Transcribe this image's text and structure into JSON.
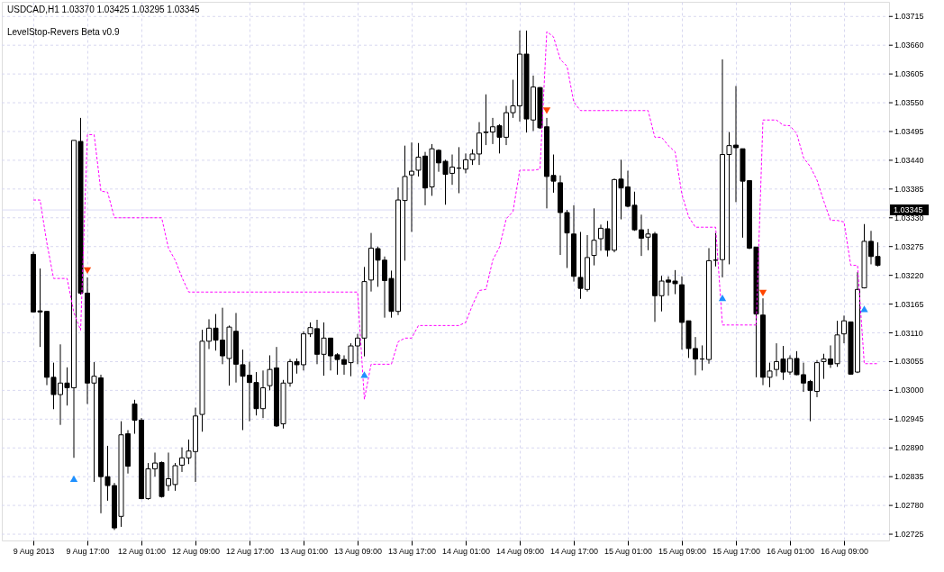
{
  "chart_data": {
    "type": "candlestick",
    "title": "USDCAD,H1 1.03370 1.03425 1.03295 1.03345",
    "subtitle": "LevelStop-Revers Beta v0.9",
    "categories": [
      "9 Aug 2013",
      null,
      null,
      null,
      null,
      null,
      null,
      null,
      "9 Aug 17:00",
      null,
      null,
      null,
      null,
      null,
      null,
      null,
      "12 Aug 01:00",
      null,
      null,
      null,
      null,
      null,
      null,
      null,
      "12 Aug 09:00",
      null,
      null,
      null,
      null,
      null,
      null,
      null,
      "12 Aug 17:00",
      null,
      null,
      null,
      null,
      null,
      null,
      null,
      "13 Aug 01:00",
      null,
      null,
      null,
      null,
      null,
      null,
      null,
      "13 Aug 09:00",
      null,
      null,
      null,
      null,
      null,
      null,
      null,
      "13 Aug 17:00",
      null,
      null,
      null,
      null,
      null,
      null,
      null,
      "14 Aug 01:00",
      null,
      null,
      null,
      null,
      null,
      null,
      null,
      "14 Aug 09:00",
      null,
      null,
      null,
      null,
      null,
      null,
      null,
      "14 Aug 17:00",
      null,
      null,
      null,
      null,
      null,
      null,
      null,
      "15 Aug 01:00",
      null,
      null,
      null,
      null,
      null,
      null,
      null,
      "15 Aug 09:00",
      null,
      null,
      null,
      null,
      null,
      null,
      null,
      "15 Aug 17:00",
      null,
      null,
      null,
      null,
      null,
      null,
      null,
      "16 Aug 01:00",
      null,
      null,
      null,
      null,
      null,
      null,
      null,
      "16 Aug 09:00",
      null,
      null,
      null,
      null,
      null
    ],
    "ohlc": [
      [
        1.0326,
        1.03265,
        1.0315,
        1.0315
      ],
      [
        1.03152,
        1.03233,
        1.03083,
        1.0315
      ],
      [
        1.03151,
        1.03151,
        1.0301,
        1.03025
      ],
      [
        1.03025,
        1.03053,
        1.02964,
        1.02992
      ],
      [
        1.02992,
        1.03088,
        1.02934,
        1.03014
      ],
      [
        1.03014,
        1.03044,
        1.02971,
        1.03005
      ],
      [
        1.03005,
        1.03478,
        1.02871,
        1.03478
      ],
      [
        1.03476,
        1.03521,
        1.03183,
        1.03186
      ],
      [
        1.03186,
        1.03216,
        1.02974,
        1.03014
      ],
      [
        1.03014,
        1.03054,
        1.02825,
        1.03027
      ],
      [
        1.03024,
        1.0303,
        1.02765,
        1.02835
      ],
      [
        1.02835,
        1.02894,
        1.02789,
        1.02818
      ],
      [
        1.02818,
        1.02823,
        1.02733,
        1.02737
      ],
      [
        1.02759,
        1.02941,
        1.02739,
        1.02915
      ],
      [
        1.02917,
        1.02924,
        1.02841,
        1.02855
      ],
      [
        1.02974,
        1.02982,
        1.02917,
        1.02943
      ],
      [
        1.02943,
        1.02947,
        1.02792,
        1.02793
      ],
      [
        1.02793,
        1.02861,
        1.02791,
        1.0285
      ],
      [
        1.0285,
        1.02881,
        1.02835,
        1.02861
      ],
      [
        1.02862,
        1.02864,
        1.02795,
        1.02797
      ],
      [
        1.02818,
        1.02881,
        1.02808,
        1.02831
      ],
      [
        1.0282,
        1.02861,
        1.02808,
        1.02856
      ],
      [
        1.02857,
        1.02891,
        1.02844,
        1.02871
      ],
      [
        1.02871,
        1.02906,
        1.02859,
        1.02884
      ],
      [
        1.02883,
        1.02967,
        1.02825,
        1.02951
      ],
      [
        1.02954,
        1.03116,
        1.02921,
        1.03094
      ],
      [
        1.03094,
        1.03136,
        1.03079,
        1.03119
      ],
      [
        1.03119,
        1.03146,
        1.03076,
        1.03096
      ],
      [
        1.03096,
        1.03158,
        1.0305,
        1.03066
      ],
      [
        1.03061,
        1.03124,
        1.03009,
        1.03121
      ],
      [
        1.03113,
        1.03148,
        1.03015,
        1.0305
      ],
      [
        1.03049,
        1.03078,
        1.02924,
        1.03027
      ],
      [
        1.03029,
        1.03055,
        1.02941,
        1.03015
      ],
      [
        1.03015,
        1.03035,
        1.02952,
        1.02965
      ],
      [
        1.02965,
        1.03038,
        1.02947,
        1.03005
      ],
      [
        1.03009,
        1.03067,
        1.03,
        1.0304
      ],
      [
        1.03043,
        1.03083,
        1.0293,
        1.02932
      ],
      [
        1.02936,
        1.0302,
        1.02927,
        1.03014
      ],
      [
        1.03014,
        1.0306,
        1.03007,
        1.03055
      ],
      [
        1.03055,
        1.03061,
        1.03032,
        1.03049
      ],
      [
        1.03049,
        1.03113,
        1.03038,
        1.03108
      ],
      [
        1.03108,
        1.0313,
        1.03102,
        1.0312
      ],
      [
        1.03118,
        1.03135,
        1.0305,
        1.03069
      ],
      [
        1.03069,
        1.0313,
        1.03028,
        1.031
      ],
      [
        1.031,
        1.031,
        1.03038,
        1.03066
      ],
      [
        1.03068,
        1.03071,
        1.0303,
        1.03059
      ],
      [
        1.03059,
        1.03067,
        1.0303,
        1.0305
      ],
      [
        1.03053,
        1.0309,
        1.03027,
        1.03085
      ],
      [
        1.03085,
        1.03108,
        1.0305,
        1.031
      ],
      [
        1.031,
        1.03236,
        1.03065,
        1.03208
      ],
      [
        1.03211,
        1.03301,
        1.03189,
        1.03272
      ],
      [
        1.03271,
        1.03275,
        1.03198,
        1.03249
      ],
      [
        1.03249,
        1.03256,
        1.03139,
        1.0321
      ],
      [
        1.03214,
        1.03229,
        1.03139,
        1.03151
      ],
      [
        1.03151,
        1.03388,
        1.03144,
        1.03364
      ],
      [
        1.03363,
        1.03468,
        1.03248,
        1.03409
      ],
      [
        1.03412,
        1.03474,
        1.03303,
        1.03419
      ],
      [
        1.03421,
        1.03473,
        1.03409,
        1.03446
      ],
      [
        1.03448,
        1.03456,
        1.03354,
        1.03387
      ],
      [
        1.03389,
        1.03471,
        1.03372,
        1.03462
      ],
      [
        1.03459,
        1.03461,
        1.03418,
        1.03435
      ],
      [
        1.03438,
        1.03441,
        1.03355,
        1.03413
      ],
      [
        1.03415,
        1.03451,
        1.03393,
        1.03427
      ],
      [
        1.03425,
        1.03465,
        1.03377,
        1.03425
      ],
      [
        1.03423,
        1.03453,
        1.03415,
        1.03441
      ],
      [
        1.03441,
        1.03461,
        1.03431,
        1.03452
      ],
      [
        1.03452,
        1.03513,
        1.03431,
        1.03492
      ],
      [
        1.03493,
        1.03566,
        1.03469,
        1.03494
      ],
      [
        1.03494,
        1.03521,
        1.03471,
        1.03504
      ],
      [
        1.03506,
        1.03509,
        1.03453,
        1.03484
      ],
      [
        1.03484,
        1.03544,
        1.03469,
        1.03531
      ],
      [
        1.03531,
        1.03594,
        1.03521,
        1.03544
      ],
      [
        1.03544,
        1.03688,
        1.03514,
        1.03643
      ],
      [
        1.03643,
        1.03688,
        1.03493,
        1.03519
      ],
      [
        1.03517,
        1.03602,
        1.03496,
        1.0358
      ],
      [
        1.03579,
        1.0358,
        1.035,
        1.03502
      ],
      [
        1.03504,
        1.03521,
        1.03348,
        1.03409
      ],
      [
        1.03411,
        1.03451,
        1.03378,
        1.034
      ],
      [
        1.03397,
        1.03411,
        1.03259,
        1.0334
      ],
      [
        1.0334,
        1.03345,
        1.03234,
        1.03301
      ],
      [
        1.03299,
        1.03354,
        1.03208,
        1.03218
      ],
      [
        1.03216,
        1.03303,
        1.03175,
        1.03195
      ],
      [
        1.03193,
        1.03297,
        1.03189,
        1.03254
      ],
      [
        1.03258,
        1.03348,
        1.03239,
        1.03287
      ],
      [
        1.0329,
        1.03317,
        1.03267,
        1.0331
      ],
      [
        1.03309,
        1.03324,
        1.03256,
        1.03268
      ],
      [
        1.03268,
        1.03405,
        1.03264,
        1.03403
      ],
      [
        1.03404,
        1.03441,
        1.03327,
        1.03387
      ],
      [
        1.03389,
        1.0342,
        1.0335,
        1.03352
      ],
      [
        1.03354,
        1.0338,
        1.03305,
        1.03307
      ],
      [
        1.03307,
        1.03336,
        1.03257,
        1.03291
      ],
      [
        1.03293,
        1.03309,
        1.03268,
        1.03299
      ],
      [
        1.03299,
        1.03303,
        1.03131,
        1.03181
      ],
      [
        1.03181,
        1.03219,
        1.03151,
        1.03209
      ],
      [
        1.03211,
        1.03218,
        1.03181,
        1.03207
      ],
      [
        1.03209,
        1.0323,
        1.03184,
        1.03204
      ],
      [
        1.03202,
        1.03218,
        1.03078,
        1.0313
      ],
      [
        1.03133,
        1.03133,
        1.03062,
        1.0308
      ],
      [
        1.0308,
        1.03102,
        1.03029,
        1.0306
      ],
      [
        1.0306,
        1.03086,
        1.03038,
        1.0306
      ],
      [
        1.03059,
        1.03272,
        1.03051,
        1.03248
      ],
      [
        1.03249,
        1.03301,
        1.03237,
        1.03249
      ],
      [
        1.0325,
        1.03633,
        1.03216,
        1.03451
      ],
      [
        1.03451,
        1.03494,
        1.03241,
        1.03468
      ],
      [
        1.03469,
        1.03582,
        1.0336,
        1.03464
      ],
      [
        1.03462,
        1.03462,
        1.03292,
        1.034
      ],
      [
        1.03401,
        1.03402,
        1.0327,
        1.03272
      ],
      [
        1.03274,
        1.03274,
        1.03025,
        1.03146
      ],
      [
        1.03144,
        1.03176,
        1.0301,
        1.03025
      ],
      [
        1.03025,
        1.03053,
        1.03006,
        1.03037
      ],
      [
        1.0304,
        1.0309,
        1.03027,
        1.03055
      ],
      [
        1.0306,
        1.03085,
        1.0302,
        1.03035
      ],
      [
        1.03035,
        1.03067,
        1.0303,
        1.03061
      ],
      [
        1.03061,
        1.03075,
        1.03029,
        1.0303
      ],
      [
        1.0303,
        1.03053,
        1.02997,
        1.03014
      ],
      [
        1.03017,
        1.0302,
        1.02941,
        1.03
      ],
      [
        1.02998,
        1.03058,
        1.02987,
        1.03053
      ],
      [
        1.03055,
        1.0307,
        1.03022,
        1.0306
      ],
      [
        1.0306,
        1.03086,
        1.03043,
        1.0305
      ],
      [
        1.03051,
        1.03133,
        1.03045,
        1.03106
      ],
      [
        1.03108,
        1.03143,
        1.0309,
        1.03133
      ],
      [
        1.03131,
        1.03131,
        1.0303,
        1.03031
      ],
      [
        1.03035,
        1.03226,
        1.03033,
        1.03193
      ],
      [
        1.03196,
        1.03318,
        1.03195,
        1.03285
      ],
      [
        1.03285,
        1.03305,
        1.03241,
        1.03256
      ],
      [
        1.03256,
        1.03283,
        1.03237,
        1.03239
      ]
    ],
    "series": [
      {
        "type": "line",
        "color": "#ff00ff",
        "line_style": "dashed",
        "marker": "none",
        "values": [
          1.03364,
          1.03364,
          1.03282,
          1.03214,
          1.03214,
          1.03214,
          1.03149,
          1.03115,
          1.03489,
          1.03489,
          1.03381,
          1.03379,
          1.0333,
          1.0333,
          1.0333,
          1.0333,
          1.0333,
          1.0333,
          1.0333,
          1.0333,
          1.03272,
          1.03249,
          1.03216,
          1.03188,
          1.03188,
          1.03188,
          1.03188,
          1.03188,
          1.03188,
          1.03188,
          1.03188,
          1.03188,
          1.03188,
          1.03188,
          1.03188,
          1.03188,
          1.03188,
          1.03188,
          1.03188,
          1.03188,
          1.03188,
          1.03188,
          1.03188,
          1.03188,
          1.03188,
          1.03188,
          1.03188,
          1.03188,
          1.03188,
          1.02983,
          1.0305,
          1.0305,
          1.0305,
          1.0305,
          1.03093,
          1.031,
          1.031,
          1.03124,
          1.03124,
          1.03124,
          1.03124,
          1.03124,
          1.03124,
          1.03124,
          1.0313,
          1.03163,
          1.03191,
          1.03193,
          1.03249,
          1.03274,
          1.03328,
          1.03342,
          1.03421,
          1.03421,
          1.03421,
          1.03423,
          1.03686,
          1.03676,
          1.03633,
          1.0362,
          1.03551,
          1.03535,
          1.03535,
          1.03535,
          1.03535,
          1.03535,
          1.03535,
          1.03535,
          1.03535,
          1.03535,
          1.03535,
          1.03535,
          1.03484,
          1.03484,
          1.03468,
          1.03456,
          1.03375,
          1.03332,
          1.03312,
          1.03312,
          1.03312,
          1.03312,
          1.03125,
          1.03125,
          1.03125,
          1.03125,
          1.03125,
          1.03125,
          1.03517,
          1.03517,
          1.03517,
          1.03507,
          1.03506,
          1.03491,
          1.03445,
          1.03428,
          1.03402,
          1.03362,
          1.03325,
          1.03325,
          1.03322,
          1.03239,
          1.03239,
          1.03051,
          1.03051,
          1.03051
        ]
      },
      {
        "type": "scatter",
        "color": "#1e90ff",
        "marker": "triangle",
        "values": [
          null,
          null,
          null,
          null,
          null,
          null,
          1.02831,
          null,
          null,
          null,
          null,
          null,
          null,
          null,
          null,
          null,
          null,
          null,
          null,
          null,
          null,
          null,
          null,
          null,
          null,
          null,
          null,
          null,
          null,
          null,
          null,
          null,
          null,
          null,
          null,
          null,
          null,
          null,
          null,
          null,
          null,
          null,
          null,
          null,
          null,
          null,
          null,
          null,
          null,
          1.0303,
          null,
          null,
          null,
          null,
          null,
          null,
          null,
          null,
          null,
          null,
          null,
          null,
          null,
          null,
          null,
          null,
          null,
          null,
          null,
          null,
          null,
          null,
          null,
          null,
          null,
          null,
          null,
          null,
          null,
          null,
          null,
          null,
          null,
          null,
          null,
          null,
          null,
          null,
          null,
          null,
          null,
          null,
          null,
          null,
          null,
          null,
          null,
          null,
          null,
          null,
          null,
          null,
          1.03177,
          null,
          null,
          null,
          null,
          null,
          null,
          null,
          null,
          null,
          null,
          null,
          null,
          null,
          null,
          null,
          null,
          null,
          null,
          null,
          null,
          1.03156,
          null,
          null
        ]
      },
      {
        "type": "scatter",
        "color": "#ff4500",
        "marker": "triangle",
        "values": [
          null,
          null,
          null,
          null,
          null,
          null,
          null,
          null,
          1.03229,
          null,
          null,
          null,
          null,
          null,
          null,
          null,
          null,
          null,
          null,
          null,
          null,
          null,
          null,
          null,
          null,
          null,
          null,
          null,
          null,
          null,
          null,
          null,
          null,
          null,
          null,
          null,
          null,
          null,
          null,
          null,
          null,
          null,
          null,
          null,
          null,
          null,
          null,
          null,
          null,
          null,
          null,
          null,
          null,
          null,
          null,
          null,
          null,
          null,
          null,
          null,
          null,
          null,
          null,
          null,
          null,
          null,
          null,
          null,
          null,
          null,
          null,
          null,
          null,
          null,
          null,
          null,
          1.03535,
          null,
          null,
          null,
          null,
          null,
          null,
          null,
          null,
          null,
          null,
          null,
          null,
          null,
          null,
          null,
          null,
          null,
          null,
          null,
          null,
          null,
          null,
          null,
          null,
          null,
          null,
          null,
          null,
          null,
          null,
          null,
          1.03186,
          null,
          null,
          null,
          null,
          null,
          null,
          null,
          null,
          null,
          null,
          null,
          null,
          null,
          null,
          null,
          null,
          null
        ]
      }
    ],
    "ylim": [
      1.02713,
      1.03743
    ],
    "yticks": [
      1.03715,
      {
        "value": 1.0366,
        "label": "1.03660"
      },
      1.03605,
      {
        "value": 1.0355,
        "label": "1.03550"
      },
      1.03495,
      {
        "value": 1.0344,
        "label": "1.03440"
      },
      1.03385,
      {
        "value": 1.0333,
        "label": "1.03330"
      },
      1.03275,
      {
        "value": 1.0322,
        "label": "1.03220"
      },
      1.03165,
      {
        "value": 1.0311,
        "label": "1.03110"
      },
      1.03055,
      {
        "value": 1.03,
        "label": "1.03000"
      },
      1.02945,
      {
        "value": 1.0289,
        "label": "1.02890"
      },
      1.02835,
      {
        "value": 1.0278,
        "label": "1.02780"
      },
      1.02725
    ],
    "ref_lines": [
      {
        "axis": "y",
        "value": 1.03345,
        "label": "1.03345",
        "color": "#dcdcf5"
      }
    ],
    "grid": true
  }
}
